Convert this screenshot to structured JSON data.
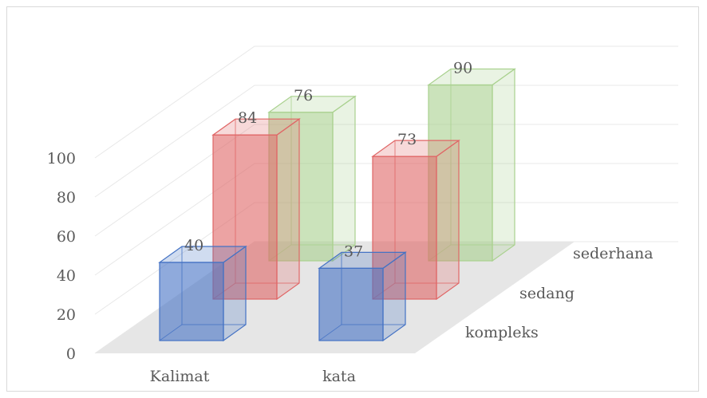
{
  "chart_data": {
    "type": "bar",
    "subtype": "3d-column",
    "categories": [
      "Kalimat",
      "kata"
    ],
    "series": [
      {
        "name": "kompleks",
        "values": [
          40,
          37
        ],
        "color": "#4472c4"
      },
      {
        "name": "sedang",
        "values": [
          84,
          73
        ],
        "color": "#e06666"
      },
      {
        "name": "sederhana",
        "values": [
          76,
          90
        ],
        "color": "#a9d18e"
      }
    ],
    "y_ticks": [
      "0",
      "20",
      "40",
      "60",
      "80",
      "100"
    ],
    "ylim": [
      0,
      100
    ],
    "grid": true,
    "data_labels": true
  }
}
